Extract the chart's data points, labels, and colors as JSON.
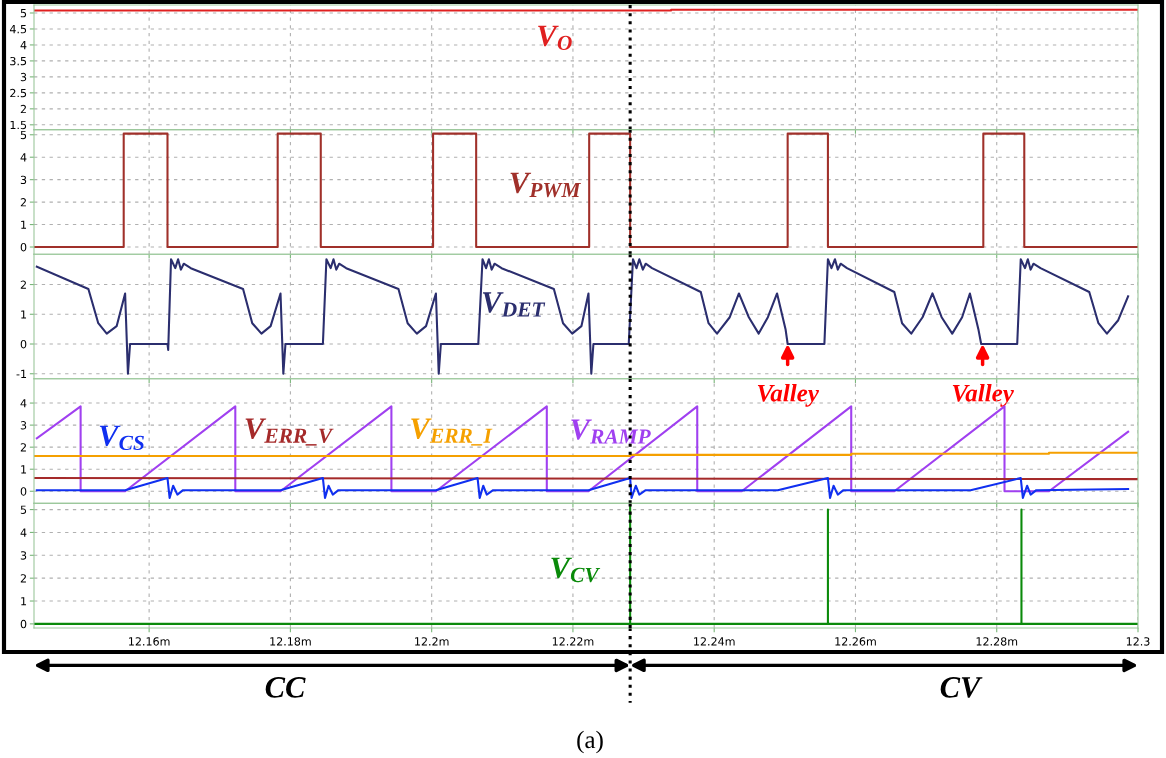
{
  "chart_data": [
    {
      "type": "line",
      "xlim": [
        12.1437,
        12.3
      ],
      "ylim": [
        1.35,
        5.25
      ],
      "yticks": [
        1.5,
        2,
        2.5,
        3,
        3.5,
        4,
        4.5,
        5
      ],
      "grid": true,
      "tick_labels": "y",
      "xticks": [
        {
          "value": 12.16,
          "label": null
        },
        {
          "value": 12.18,
          "label": null
        },
        {
          "value": 12.2,
          "label": null
        },
        {
          "value": 12.22,
          "label": null
        },
        {
          "value": 12.24,
          "label": null
        },
        {
          "value": 12.26,
          "label": null
        },
        {
          "value": 12.28,
          "label": null
        },
        {
          "value": 12.3,
          "label": null
        }
      ],
      "ref_lines": [
        {
          "axis": "x",
          "value": 12.2281,
          "color": "#000000",
          "line_style": "dotted"
        }
      ],
      "series": [
        {
          "name": "V$_{O}$",
          "color": "#e02020",
          "x": [
            12.1437,
            12.2339,
            12.2339,
            12.3
          ],
          "values": [
            5.08,
            5.08,
            5.1,
            5.1
          ]
        }
      ]
    },
    {
      "type": "line",
      "xlim": [
        12.1437,
        12.3
      ],
      "ylim": [
        -0.32,
        5.23
      ],
      "yticks": [
        0,
        1,
        2,
        3,
        4,
        5
      ],
      "grid": true,
      "tick_labels": "y",
      "xticks": [
        {
          "value": 12.16,
          "label": null
        },
        {
          "value": 12.18,
          "label": null
        },
        {
          "value": 12.2,
          "label": null
        },
        {
          "value": 12.22,
          "label": null
        },
        {
          "value": 12.24,
          "label": null
        },
        {
          "value": 12.26,
          "label": null
        },
        {
          "value": 12.28,
          "label": null
        },
        {
          "value": 12.3,
          "label": null
        }
      ],
      "ref_lines": [
        {
          "axis": "x",
          "value": 12.2281,
          "color": "#000000",
          "line_style": "dotted"
        }
      ],
      "series": [
        {
          "name": "V$_{PWM}$",
          "color": "#a0302a",
          "x": [
            12.1437,
            12.1564,
            12.1564,
            12.1626,
            12.1626,
            12.1782,
            12.1782,
            12.1843,
            12.1843,
            12.2002,
            12.2002,
            12.2063,
            12.2063,
            12.2223,
            12.2223,
            12.2281,
            12.2281,
            12.2504,
            12.2504,
            12.2561,
            12.2561,
            12.2781,
            12.2781,
            12.2839,
            12.2839,
            12.3
          ],
          "values": [
            0,
            0,
            5.05,
            5.05,
            0,
            0,
            5.05,
            5.05,
            0,
            0,
            5.05,
            5.05,
            0,
            0,
            5.05,
            5.05,
            0,
            0,
            5.05,
            5.05,
            0,
            0,
            5.05,
            5.05,
            0,
            0
          ]
        }
      ]
    },
    {
      "type": "line",
      "xlim": [
        12.1437,
        12.3
      ],
      "ylim": [
        -1.17,
        3.02
      ],
      "yticks": [
        -1,
        0,
        1,
        2
      ],
      "grid": true,
      "tick_labels": "y",
      "xticks": [
        {
          "value": 12.16,
          "label": null
        },
        {
          "value": 12.18,
          "label": null
        },
        {
          "value": 12.2,
          "label": null
        },
        {
          "value": 12.22,
          "label": null
        },
        {
          "value": 12.24,
          "label": null
        },
        {
          "value": 12.26,
          "label": null
        },
        {
          "value": 12.28,
          "label": null
        },
        {
          "value": 12.3,
          "label": null
        }
      ],
      "ref_lines": [
        {
          "axis": "x",
          "value": 12.2281,
          "color": "#000000",
          "line_style": "dotted"
        }
      ],
      "annotations": [
        {
          "text": "Valley",
          "x": 12.2504,
          "y": 0
        },
        {
          "text": "Valley",
          "x": 12.278,
          "y": 0
        }
      ],
      "series": [
        {
          "name": "V$_{DET}$",
          "color": "#2b2e6e",
          "x": [
            12.1441,
            12.1514,
            12.1528,
            12.154,
            12.1554,
            12.1566,
            12.157,
            12.1573,
            12.1626,
            12.1627,
            12.1631,
            12.1637,
            12.1641,
            12.1645,
            12.1649,
            12.1659,
            12.1733,
            12.1746,
            12.1759,
            12.1772,
            12.1786,
            12.179,
            12.1793,
            12.1846,
            12.1851,
            12.1857,
            12.1861,
            12.1865,
            12.1869,
            12.1879,
            12.1953,
            12.1966,
            12.1979,
            12.1992,
            12.2006,
            12.201,
            12.2013,
            12.2066,
            12.2072,
            12.2077,
            12.2081,
            12.2085,
            12.2089,
            12.2099,
            12.2173,
            12.2186,
            12.2199,
            12.2212,
            12.2222,
            12.2226,
            12.2229,
            12.2279,
            12.2285,
            12.229,
            12.2294,
            12.2299,
            12.2303,
            12.2312,
            12.2381,
            12.2392,
            12.2404,
            12.2422,
            12.2435,
            12.2449,
            12.2463,
            12.2476,
            12.2489,
            12.2501,
            12.2504,
            12.2556,
            12.2561,
            12.2566,
            12.2571,
            12.2575,
            12.2579,
            12.2588,
            12.2655,
            12.2666,
            12.2679,
            12.2695,
            12.2709,
            12.2722,
            12.2737,
            12.2751,
            12.2762,
            12.2774,
            12.2778,
            12.2829,
            12.2834,
            12.284,
            12.2844,
            12.2848,
            12.2852,
            12.2862,
            12.2931,
            12.2944,
            12.2956,
            12.2972,
            12.2986
          ],
          "values": [
            2.6,
            1.85,
            0.7,
            0.35,
            0.6,
            1.7,
            -1.0,
            0,
            0,
            -0.2,
            2.85,
            2.55,
            2.85,
            2.5,
            2.7,
            2.55,
            1.85,
            0.7,
            0.35,
            0.6,
            1.7,
            -1.0,
            0,
            0,
            2.85,
            2.55,
            2.85,
            2.5,
            2.7,
            2.55,
            1.85,
            0.7,
            0.35,
            0.6,
            1.7,
            -1.0,
            0,
            0,
            2.85,
            2.55,
            2.85,
            2.5,
            2.7,
            2.55,
            1.85,
            0.7,
            0.35,
            0.6,
            1.7,
            -1.0,
            0,
            0,
            2.85,
            2.55,
            2.85,
            2.5,
            2.7,
            2.55,
            1.75,
            0.7,
            0.35,
            0.9,
            1.7,
            0.9,
            0.35,
            0.9,
            1.7,
            0.5,
            0,
            0,
            2.85,
            2.55,
            2.85,
            2.5,
            2.7,
            2.55,
            1.75,
            0.7,
            0.35,
            0.9,
            1.7,
            0.9,
            0.35,
            0.9,
            1.7,
            0.5,
            0,
            0,
            2.85,
            2.55,
            2.85,
            2.5,
            2.7,
            2.55,
            1.75,
            0.7,
            0.35,
            0.8,
            1.6
          ]
        }
      ]
    },
    {
      "type": "line",
      "xlim": [
        12.1437,
        12.3
      ],
      "ylim": [
        -0.55,
        5.1
      ],
      "yticks": [
        0,
        1,
        2,
        3,
        4
      ],
      "grid": true,
      "tick_labels": "y",
      "xticks": [
        {
          "value": 12.16,
          "label": null
        },
        {
          "value": 12.18,
          "label": null
        },
        {
          "value": 12.2,
          "label": null
        },
        {
          "value": 12.22,
          "label": null
        },
        {
          "value": 12.24,
          "label": null
        },
        {
          "value": 12.26,
          "label": null
        },
        {
          "value": 12.28,
          "label": null
        },
        {
          "value": 12.3,
          "label": null
        }
      ],
      "ref_lines": [
        {
          "axis": "x",
          "value": 12.2281,
          "color": "#000000",
          "line_style": "dotted"
        }
      ],
      "series": [
        {
          "name": "V$_{RAMP}$",
          "color": "#a040f0",
          "x": [
            12.1441,
            12.1503,
            12.1503,
            12.1566,
            12.1722,
            12.1722,
            12.1786,
            12.1943,
            12.1943,
            12.2006,
            12.2163,
            12.2163,
            12.2222,
            12.2376,
            12.2376,
            12.2439,
            12.2594,
            12.2594,
            12.2655,
            12.2811,
            12.2811,
            12.2874,
            12.2986
          ],
          "values": [
            2.4,
            3.85,
            0,
            0,
            3.85,
            0,
            0,
            3.85,
            0,
            0,
            3.85,
            0,
            0,
            3.85,
            0,
            0,
            3.85,
            0,
            0,
            3.85,
            0,
            0,
            2.7
          ]
        },
        {
          "name": "V$_{ERR_I}$",
          "color": "#f5a000",
          "x": [
            12.1437,
            12.2281,
            12.2281,
            12.2594,
            12.2594,
            12.2874,
            12.2874,
            12.3
          ],
          "values": [
            1.6,
            1.6,
            1.65,
            1.65,
            1.7,
            1.7,
            1.75,
            1.75
          ]
        },
        {
          "name": "V$_{ERR_V}$",
          "color": "#a52a2a",
          "x": [
            12.1437,
            12.3
          ],
          "values": [
            0.6,
            0.55
          ]
        },
        {
          "name": "V$_{CS}$",
          "color": "#1030f0",
          "x": [
            12.1441,
            12.1566,
            12.1626,
            12.1629,
            12.1634,
            12.164,
            12.1648,
            12.1786,
            12.1846,
            12.1849,
            12.1854,
            12.186,
            12.1868,
            12.2006,
            12.2065,
            12.2068,
            12.2073,
            12.2078,
            12.2087,
            12.2222,
            12.2281,
            12.2283,
            12.2289,
            12.2294,
            12.2303,
            12.249,
            12.2561,
            12.2564,
            12.2569,
            12.2575,
            12.2583,
            12.2763,
            12.2834,
            12.2837,
            12.2843,
            12.2848,
            12.2856,
            12.2986
          ],
          "values": [
            0.05,
            0.05,
            0.6,
            -0.3,
            0.25,
            -0.15,
            0.05,
            0.05,
            0.6,
            -0.3,
            0.25,
            -0.15,
            0.05,
            0.05,
            0.6,
            -0.3,
            0.25,
            -0.15,
            0.05,
            0.05,
            0.6,
            -0.3,
            0.25,
            -0.15,
            0.05,
            0.05,
            0.6,
            -0.3,
            0.25,
            -0.15,
            0.05,
            0.05,
            0.6,
            -0.3,
            0.25,
            -0.15,
            0.05,
            0.1
          ]
        }
      ]
    },
    {
      "type": "line",
      "xlim": [
        12.1437,
        12.3
      ],
      "ylim": [
        -0.18,
        5.27
      ],
      "yticks": [
        0,
        1,
        2,
        3,
        4,
        5
      ],
      "grid": true,
      "xticks": [
        {
          "value": 12.16,
          "label": "12.16m"
        },
        {
          "value": 12.18,
          "label": "12.18m"
        },
        {
          "value": 12.2,
          "label": "12.2m"
        },
        {
          "value": 12.22,
          "label": "12.22m"
        },
        {
          "value": 12.24,
          "label": "12.24m"
        },
        {
          "value": 12.26,
          "label": "12.26m"
        },
        {
          "value": 12.28,
          "label": "12.28m"
        },
        {
          "value": 12.3,
          "label": "12.3"
        }
      ],
      "ref_lines": [
        {
          "axis": "x",
          "value": 12.2281,
          "color": "#000000",
          "line_style": "dotted"
        }
      ],
      "annotations": [
        "CC",
        "CV",
        "(a)"
      ],
      "series": [
        {
          "name": "V$_{CV}$",
          "color": "#0a8a0a",
          "x": [
            12.1437,
            12.2281,
            12.2281,
            12.2281,
            12.2561,
            12.2561,
            12.2561,
            12.2835,
            12.2835,
            12.2835,
            12.3
          ],
          "values": [
            0,
            0,
            5.2,
            0,
            0,
            5.0,
            0,
            0,
            5.0,
            0,
            0
          ]
        }
      ]
    }
  ]
}
